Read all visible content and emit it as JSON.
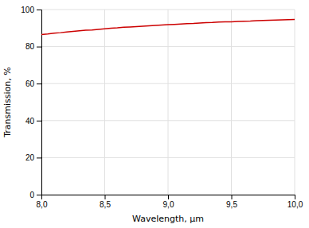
{
  "chart_data": {
    "type": "line",
    "x": [
      8.0,
      8.05,
      8.1,
      8.15,
      8.2,
      8.25,
      8.3,
      8.35,
      8.4,
      8.45,
      8.5,
      8.55,
      8.6,
      8.65,
      8.7,
      8.75,
      8.8,
      8.85,
      8.9,
      8.95,
      9.0,
      9.05,
      9.1,
      9.15,
      9.2,
      9.25,
      9.3,
      9.35,
      9.4,
      9.45,
      9.5,
      9.55,
      9.6,
      9.65,
      9.7,
      9.75,
      9.8,
      9.85,
      9.9,
      9.95,
      10.0
    ],
    "series": [
      {
        "color": "#cc0000",
        "values": [
          86.5,
          86.8,
          87.2,
          87.5,
          87.9,
          88.2,
          88.5,
          88.8,
          89.0,
          89.3,
          89.6,
          89.9,
          90.1,
          90.4,
          90.6,
          90.8,
          91.0,
          91.2,
          91.4,
          91.6,
          91.8,
          92.0,
          92.2,
          92.4,
          92.5,
          92.7,
          92.9,
          93.0,
          93.2,
          93.3,
          93.4,
          93.6,
          93.7,
          93.8,
          94.0,
          94.1,
          94.2,
          94.3,
          94.4,
          94.5,
          94.6
        ]
      }
    ],
    "xlabel": "Wavelength, μm",
    "ylabel": "Transmission, %",
    "xlim": [
      8.0,
      10.0
    ],
    "ylim": [
      0,
      100
    ],
    "xticks": [
      {
        "value": 8.0,
        "label": "8,0"
      },
      {
        "value": 8.5,
        "label": "8,5"
      },
      {
        "value": 9.0,
        "label": "9,0"
      },
      {
        "value": 9.5,
        "label": "9,5"
      },
      {
        "value": 10.0,
        "label": "10,0"
      }
    ],
    "yticks": [
      0,
      20,
      40,
      60,
      80,
      100
    ],
    "grid": true
  }
}
